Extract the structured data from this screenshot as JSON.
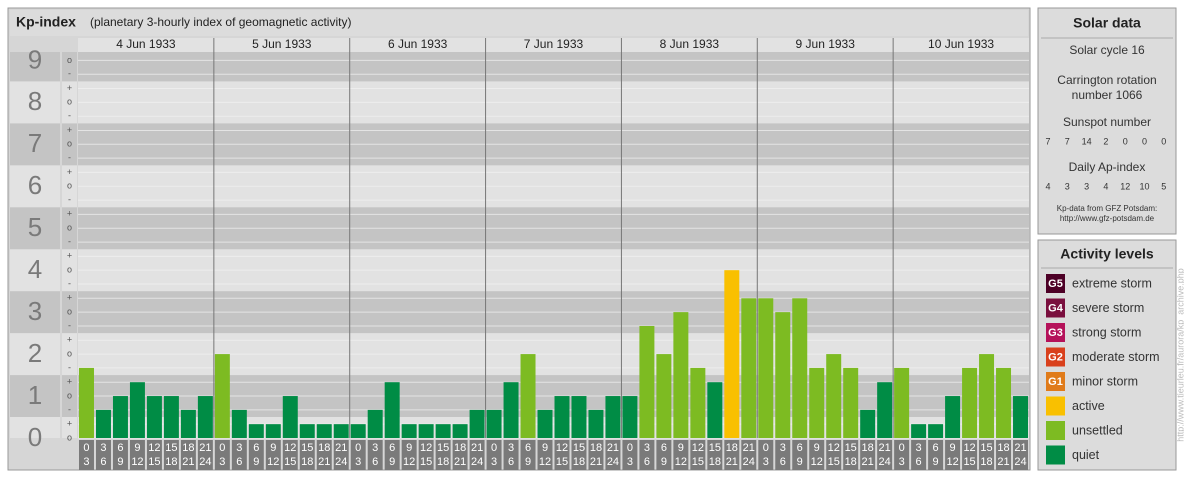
{
  "chart_data": {
    "type": "bar",
    "title": "Kp-index",
    "subtitle": "(planetary 3-hourly index of geomagnetic activity)",
    "days": [
      "4 Jun 1933",
      "5 Jun 1933",
      "6 Jun 1933",
      "7 Jun 1933",
      "8 Jun 1933",
      "9 Jun 1933",
      "10 Jun 1933"
    ],
    "hours": [
      [
        "0",
        "3"
      ],
      [
        "3",
        "6"
      ],
      [
        "6",
        "9"
      ],
      [
        "9",
        "12"
      ],
      [
        "12",
        "15"
      ],
      [
        "15",
        "18"
      ],
      [
        "18",
        "21"
      ],
      [
        "21",
        "24"
      ]
    ],
    "values": [
      1.67,
      0.67,
      1,
      1.33,
      1,
      1,
      0.67,
      1,
      2,
      0.67,
      0.33,
      0.33,
      1,
      0.33,
      0.33,
      0.33,
      0.33,
      0.67,
      1.33,
      0.33,
      0.33,
      0.33,
      0.33,
      0.67,
      0.67,
      1.33,
      2,
      0.67,
      1,
      1,
      0.67,
      1,
      1,
      2.67,
      2,
      3,
      1.67,
      1.33,
      4,
      3.33,
      3.33,
      3,
      3.33,
      1.67,
      2,
      1.67,
      0.67,
      1.33,
      1.67,
      0.33,
      0.33,
      1,
      1.67,
      2,
      1.67,
      1
    ],
    "colors": [
      "#7dbb22",
      "#008c45",
      "#008c45",
      "#008c45",
      "#008c45",
      "#008c45",
      "#008c45",
      "#008c45",
      "#7dbb22",
      "#008c45",
      "#008c45",
      "#008c45",
      "#008c45",
      "#008c45",
      "#008c45",
      "#008c45",
      "#008c45",
      "#008c45",
      "#008c45",
      "#008c45",
      "#008c45",
      "#008c45",
      "#008c45",
      "#008c45",
      "#008c45",
      "#008c45",
      "#7dbb22",
      "#008c45",
      "#008c45",
      "#008c45",
      "#008c45",
      "#008c45",
      "#008c45",
      "#7dbb22",
      "#7dbb22",
      "#7dbb22",
      "#7dbb22",
      "#008c45",
      "#f9c000",
      "#7dbb22",
      "#7dbb22",
      "#7dbb22",
      "#7dbb22",
      "#7dbb22",
      "#7dbb22",
      "#7dbb22",
      "#008c45",
      "#008c45",
      "#7dbb22",
      "#008c45",
      "#008c45",
      "#008c45",
      "#7dbb22",
      "#7dbb22",
      "#7dbb22",
      "#008c45"
    ],
    "ylim": [
      0,
      9.2
    ],
    "yticks": [
      0,
      1,
      2,
      3,
      4,
      5,
      6,
      7,
      8,
      9
    ],
    "minor_ticks": [
      {
        "value": 0,
        "label": "o"
      },
      {
        "value": 0.33,
        "label": "+"
      },
      {
        "value": 0.67,
        "label": "-"
      },
      {
        "value": 1,
        "label": "o"
      },
      {
        "value": 1.33,
        "label": "+"
      },
      {
        "value": 1.67,
        "label": "-"
      },
      {
        "value": 2,
        "label": "o"
      },
      {
        "value": 2.33,
        "label": "+"
      },
      {
        "value": 2.67,
        "label": "-"
      },
      {
        "value": 3,
        "label": "o"
      },
      {
        "value": 3.33,
        "label": "+"
      },
      {
        "value": 3.67,
        "label": "-"
      },
      {
        "value": 4,
        "label": "o"
      },
      {
        "value": 4.33,
        "label": "+"
      },
      {
        "value": 4.67,
        "label": "-"
      },
      {
        "value": 5,
        "label": "o"
      },
      {
        "value": 5.33,
        "label": "+"
      },
      {
        "value": 5.67,
        "label": "-"
      },
      {
        "value": 6,
        "label": "o"
      },
      {
        "value": 6.33,
        "label": "+"
      },
      {
        "value": 6.67,
        "label": "-"
      },
      {
        "value": 7,
        "label": "o"
      },
      {
        "value": 7.33,
        "label": "+"
      },
      {
        "value": 7.67,
        "label": "-"
      },
      {
        "value": 8,
        "label": "o"
      },
      {
        "value": 8.33,
        "label": "+"
      },
      {
        "value": 8.67,
        "label": "-"
      },
      {
        "value": 9,
        "label": "o"
      }
    ],
    "grid": true
  },
  "solar_data": {
    "title": "Solar data",
    "cycle": "Solar cycle 16",
    "carrington": [
      "Carrington rotation",
      "number 1066"
    ],
    "sunspot_title": "Sunspot number",
    "sunspot": [
      7,
      7,
      14,
      2,
      0,
      0,
      0
    ],
    "ap_title": "Daily Ap-index",
    "ap": [
      4,
      3,
      3,
      4,
      12,
      10,
      5
    ],
    "source": [
      "Kp-data from GFZ Potsdam:",
      "http://www.gfz-potsdam.de"
    ]
  },
  "activity_levels": {
    "title": "Activity levels",
    "items": [
      {
        "badge": "G5",
        "name": "extreme storm",
        "color": "#4d0026"
      },
      {
        "badge": "G4",
        "name": "severe storm",
        "color": "#7a0f3e"
      },
      {
        "badge": "G3",
        "name": "strong storm",
        "color": "#b5125a"
      },
      {
        "badge": "G2",
        "name": "moderate storm",
        "color": "#d9401c"
      },
      {
        "badge": "G1",
        "name": "minor storm",
        "color": "#e07b1a"
      },
      {
        "name": "active",
        "color": "#f9c000"
      },
      {
        "name": "unsettled",
        "color": "#7dbb22"
      },
      {
        "name": "quiet",
        "color": "#008c45"
      }
    ]
  },
  "side_url": "http://www.tieurleu.fr/aurora/kp_archive.php"
}
